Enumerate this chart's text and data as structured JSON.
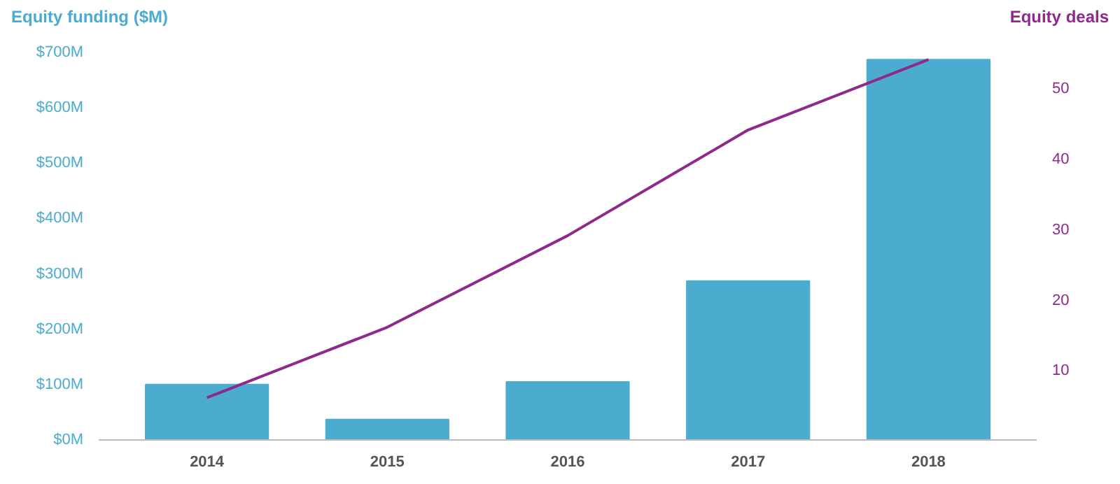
{
  "chart_data": {
    "type": "bar",
    "ylabel": "Equity funding ($M)",
    "y2label": "Equity deals",
    "categories": [
      "2014",
      "2015",
      "2016",
      "2017",
      "2018"
    ],
    "series": [
      {
        "color": "#4bacd0",
        "values": [
          100,
          37,
          105,
          287,
          687
        ]
      },
      {
        "type": "line",
        "axis": "y2",
        "color": "#8e2a8c",
        "values": [
          6,
          16,
          29,
          44,
          54
        ]
      }
    ],
    "ylim": [
      0,
      700
    ],
    "yticks": [
      {
        "value": 0,
        "label": "$0M"
      },
      {
        "value": 100,
        "label": "$100M"
      },
      {
        "value": 200,
        "label": "$200M"
      },
      {
        "value": 300,
        "label": "$300M"
      },
      {
        "value": 400,
        "label": "$400M"
      },
      {
        "value": 500,
        "label": "$500M"
      },
      {
        "value": 600,
        "label": "$600M"
      },
      {
        "value": 700,
        "label": "$700M"
      }
    ],
    "y2lim": [
      0,
      55
    ],
    "y2ticks": [
      10,
      20,
      30,
      40,
      50
    ],
    "grid": false,
    "marker": "none",
    "line_style": "solid"
  }
}
